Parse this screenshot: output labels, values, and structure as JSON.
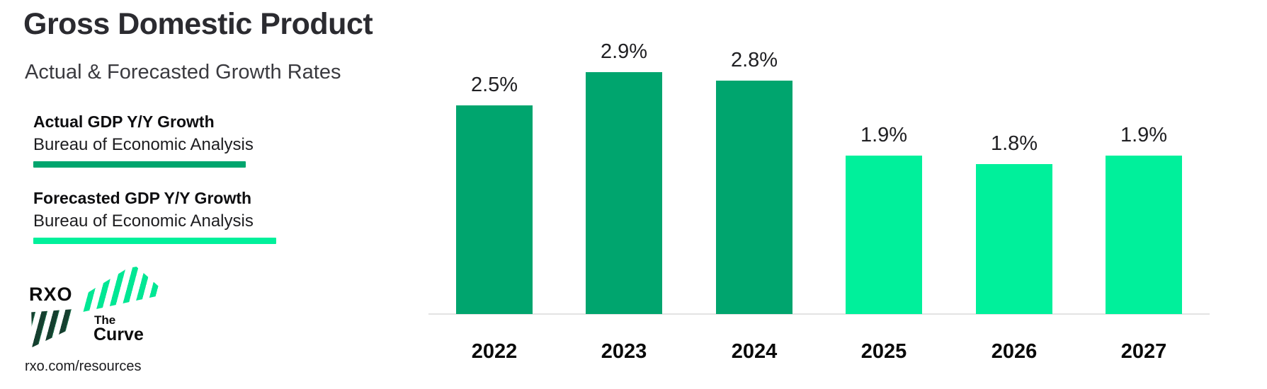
{
  "header": {
    "title": "Gross Domestic Product",
    "subtitle": "Actual & Forecasted Growth Rates"
  },
  "legend": [
    {
      "label": "Actual GDP Y/Y Growth",
      "source": "Bureau of Economic Analysis",
      "color": "#00a56e"
    },
    {
      "label": "Forecasted GDP Y/Y Growth",
      "source": "Bureau of Economic Analysis",
      "color": "#00f09b"
    }
  ],
  "logo": {
    "brand": "RXO",
    "product_line1": "The",
    "product_line2": "Curve"
  },
  "footer": {
    "url": "rxo.com/resources"
  },
  "chart_data": {
    "type": "bar",
    "title": "Gross Domestic Product",
    "subtitle": "Actual & Forecasted Growth Rates",
    "categories": [
      "2022",
      "2023",
      "2024",
      "2025",
      "2026",
      "2027"
    ],
    "values": [
      2.5,
      2.9,
      2.8,
      1.9,
      1.8,
      1.9
    ],
    "value_labels": [
      "2.5%",
      "2.9%",
      "2.8%",
      "1.9%",
      "1.8%",
      "1.9%"
    ],
    "bar_colors": [
      "#00a56e",
      "#00a56e",
      "#00a56e",
      "#00f09b",
      "#00f09b",
      "#00f09b"
    ],
    "series": [
      {
        "name": "Actual GDP Y/Y Growth",
        "source": "Bureau of Economic Analysis",
        "color": "#00a56e",
        "categories": [
          "2022",
          "2023",
          "2024"
        ],
        "values": [
          2.5,
          2.9,
          2.8
        ]
      },
      {
        "name": "Forecasted GDP Y/Y Growth",
        "source": "Bureau of Economic Analysis",
        "color": "#00f09b",
        "categories": [
          "2025",
          "2026",
          "2027"
        ],
        "values": [
          1.9,
          1.8,
          1.9
        ]
      }
    ],
    "xlabel": "",
    "ylabel": "",
    "ylim": [
      0,
      3.2
    ],
    "grid": false,
    "data_labels": true,
    "legend_position": "left"
  }
}
